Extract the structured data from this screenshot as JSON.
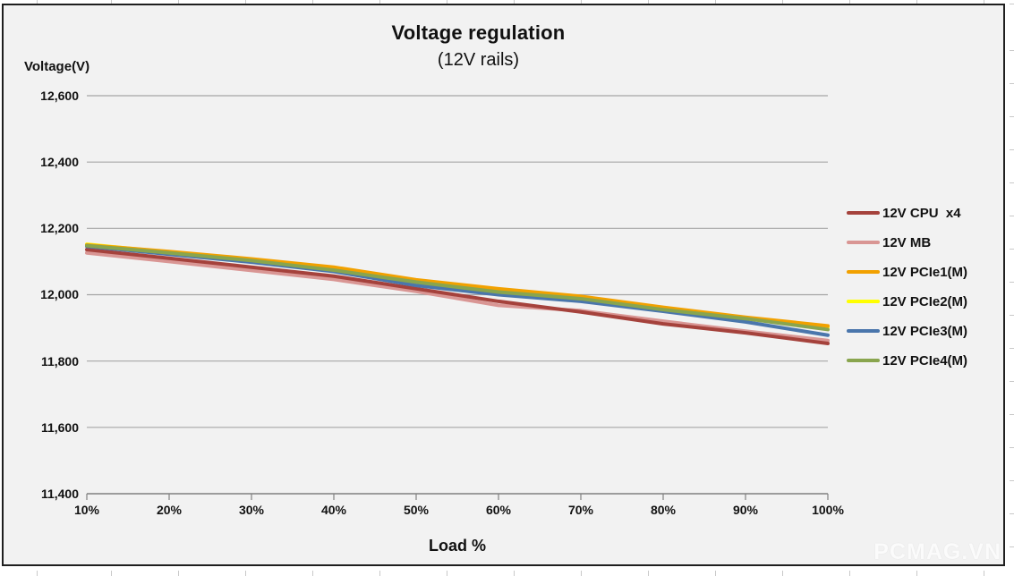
{
  "page": {
    "watermark": "PCMAG.VN"
  },
  "chart_data": {
    "type": "line",
    "title": "Voltage regulation",
    "subtitle": "(12V rails)",
    "ylabel": "Voltage(V)",
    "xlabel": "Load %",
    "x": [
      10,
      20,
      30,
      40,
      50,
      60,
      70,
      80,
      90,
      100
    ],
    "xticklabels": [
      "10%",
      "20%",
      "30%",
      "40%",
      "50%",
      "60%",
      "70%",
      "80%",
      "90%",
      "100%"
    ],
    "yticks": [
      12600,
      12400,
      12200,
      12000,
      11800,
      11600,
      11400
    ],
    "yticklabels": [
      "12,600",
      "12,400",
      "12,200",
      "12,000",
      "11,800",
      "11,600",
      "11,400"
    ],
    "ylim": [
      11400,
      12600
    ],
    "grid": true,
    "legend_position": "right",
    "background_color": "#f2f2f2",
    "gridline_color": "#a6a6a6",
    "axis_color": "#808080",
    "series": [
      {
        "name": "12V CPU  x4",
        "color": "#a5423c",
        "values": [
          12136,
          12110,
          12083,
          12056,
          12018,
          11980,
          11948,
          11912,
          11885,
          11853
        ]
      },
      {
        "name": "12V MB",
        "color": "#d99694",
        "values": [
          12126,
          12100,
          12073,
          12046,
          12010,
          11968,
          11952,
          11920,
          11890,
          11862
        ]
      },
      {
        "name": "12V PCIe1(M)",
        "color": "#f2a100",
        "values": [
          12150,
          12130,
          12108,
          12083,
          12045,
          12018,
          11995,
          11962,
          11932,
          11906
        ]
      },
      {
        "name": "12V PCIe2(M)",
        "color": "#ffff00",
        "values": [
          12152,
          12128,
          12105,
          12080,
          12042,
          12014,
          11992,
          11958,
          11928,
          11902
        ]
      },
      {
        "name": "12V PCIe3(M)",
        "color": "#4a76ac",
        "values": [
          12146,
          12122,
          12098,
          12070,
          12028,
          12000,
          11980,
          11950,
          11918,
          11878
        ]
      },
      {
        "name": "12V PCIe4(M)",
        "color": "#89a54e",
        "values": [
          12148,
          12126,
          12103,
          12074,
          12038,
          12008,
          11988,
          11955,
          11928,
          11895
        ]
      }
    ]
  }
}
